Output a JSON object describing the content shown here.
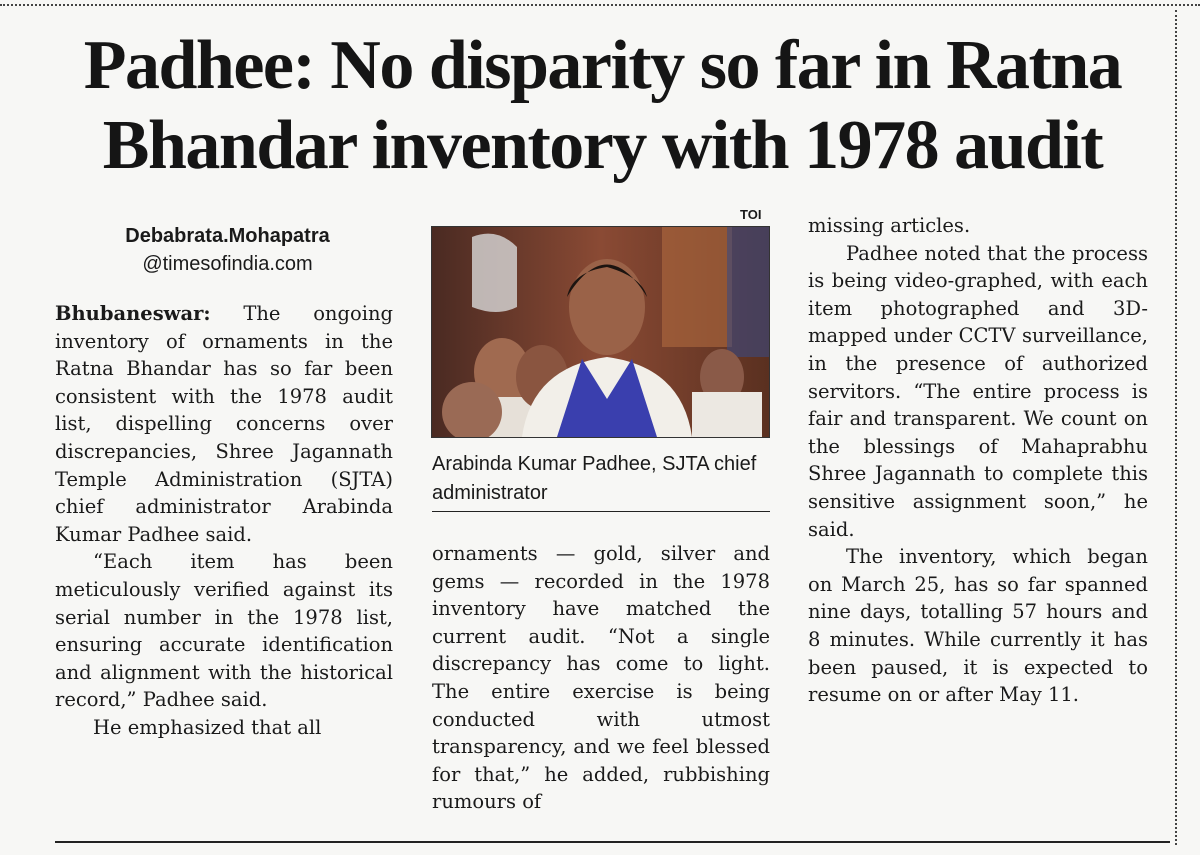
{
  "article": {
    "headline_line1": "Padhee: No disparity so far in Ratna",
    "headline_line2": "Bhandar inventory with 1978 audit",
    "byline_name": "Debabrata.Mohapatra",
    "byline_handle": "@timesofindia.com",
    "photo_credit": "TOI",
    "photo_caption": "Arabinda Kumar Padhee, SJTA chief administrator",
    "dateline": "Bhubaneswar:",
    "col1_p1": "The ongoing inventory of ornaments in the Ratna Bhandar has so far been consistent with the 1978 audit list, dispelling concerns over discrepancies, Shree Jagannath Temple Administration (SJTA) chief administrator Arabinda Kumar Padhee said.",
    "col1_p2": "“Each item has been meticulously verified against its serial number in the 1978 list, ensuring accurate identification and alignment with the historical record,” Padhee said.",
    "col1_p3": "He emphasized that all",
    "col2_p1": "ornaments — gold, silver and gems — recorded in the 1978 inventory have matched the current audit. “Not a single discrepancy has come to light. The entire exercise is being conducted with utmost transparency, and we feel blessed for that,” he added, rubbishing rumours of",
    "col3_p1": "missing articles.",
    "col3_p2": "Padhee noted that the process is being video-graphed, with each item photographed and 3D-mapped under CCTV surveillance, in the presence of authorized servitors. “The entire process is fair and transparent. We count on the blessings of Mahaprabhu Shree Jagannath to complete this sensitive assignment soon,” he said.",
    "col3_p3": "The inventory, which began on March 25, has so far spanned nine days, totalling 57 hours and 8 minutes. While currently it has been paused, it is expected to resume on or after May 11."
  },
  "colors": {
    "paper": "#f7f7f5",
    "ink": "#1a1a1a",
    "scarf": "#3a3fae"
  }
}
